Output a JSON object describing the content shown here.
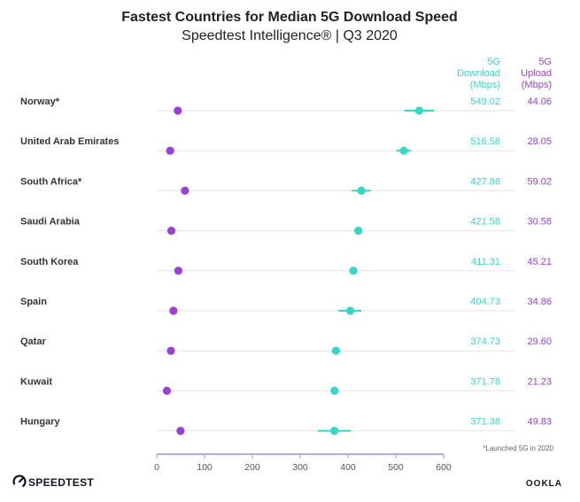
{
  "colors": {
    "download": "#33d9c6",
    "upload": "#9b3fd6",
    "row_line": "#e3e3ea",
    "axis": "#9b95c4",
    "text": "#222222"
  },
  "icons": [
    "speedtest-logo-icon",
    "ookla-logo-icon"
  ],
  "chart_data": {
    "type": "dot-plot",
    "title": "Fastest Countries for Median 5G Download Speed",
    "subtitle": "Speedtest Intelligence® | Q3 2020",
    "columns": {
      "download": [
        "5G",
        "Download",
        "(Mbps)"
      ],
      "upload": [
        "5G",
        "Upload",
        "(Mbps)"
      ]
    },
    "xlim": [
      0,
      600
    ],
    "xticks": [
      "0",
      "100",
      "200",
      "300",
      "400",
      "500",
      "600"
    ],
    "grid": false,
    "categories": [
      "Norway*",
      "United Arab Emirates",
      "South Africa*",
      "Saudi Arabia",
      "South Korea",
      "Spain",
      "Qatar",
      "Kuwait",
      "Hungary"
    ],
    "series": [
      {
        "key": "download",
        "values": [
          549.02,
          516.58,
          427.86,
          421.58,
          411.31,
          404.73,
          374.73,
          371.78,
          371.38
        ],
        "labels": [
          "549.02",
          "516.58",
          "427.86",
          "421.58",
          "411.31",
          "404.73",
          "374.73",
          "371.78",
          "371.38"
        ],
        "ci_low": [
          518,
          501,
          408,
          418,
          406,
          380,
          366,
          367,
          337
        ],
        "ci_high": [
          580,
          532,
          448,
          425,
          416,
          428,
          384,
          376,
          406
        ]
      },
      {
        "key": "upload",
        "values": [
          44.06,
          28.05,
          59.02,
          30.58,
          45.21,
          34.86,
          29.6,
          21.23,
          49.83
        ],
        "labels": [
          "44.06",
          "28.05",
          "59.02",
          "30.58",
          "45.21",
          "34.86",
          "29.60",
          "21.23",
          "49.83"
        ]
      }
    ],
    "footnote": "*Launched 5G in 2020"
  },
  "footer": {
    "brand_left": "SPEEDTEST",
    "brand_right": "OOKLA"
  }
}
